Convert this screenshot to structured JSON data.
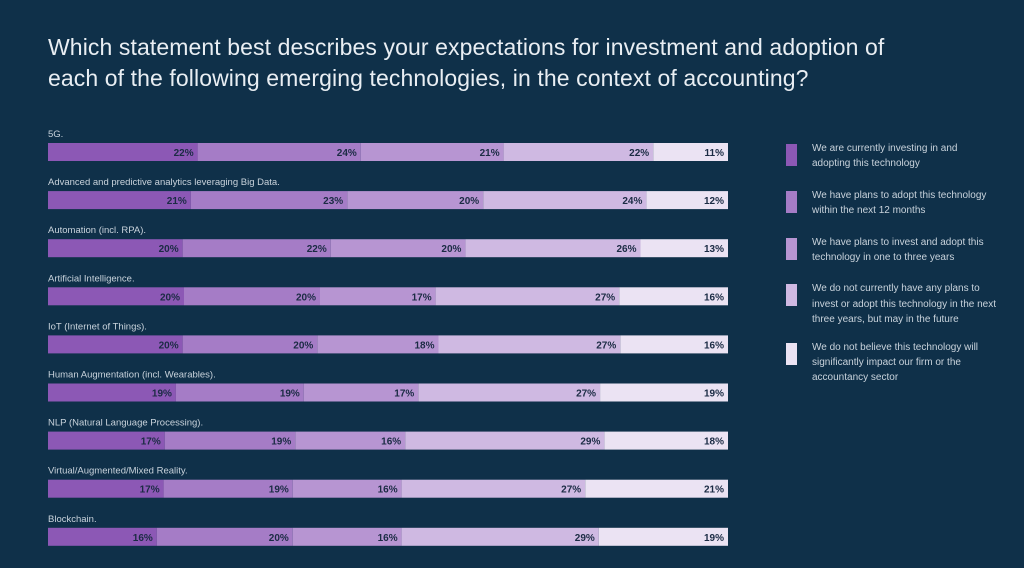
{
  "title_line1": "Which statement best describes your expectations for investment and adoption of",
  "title_line2": "each of the following emerging technologies, in the context of accounting?",
  "colors": {
    "background": "#0f3049",
    "segments": [
      "#8c58b5",
      "#a57cc6",
      "#b795d2",
      "#cfb9e2",
      "#ebe3f3"
    ]
  },
  "legend": [
    {
      "text": "We are currently investing in and adopting this technology"
    },
    {
      "text": "We have plans to adopt this technology within the next 12 months"
    },
    {
      "text": "We have plans to invest and adopt this technology in one to three years"
    },
    {
      "text": "We do not currently have any plans to invest or adopt this technology in the next three years, but may in the future"
    },
    {
      "text": "We do not believe this technology will significantly impact our firm or the accountancy sector"
    }
  ],
  "chart_data": {
    "type": "bar",
    "orientation": "horizontal",
    "stacked": true,
    "unit": "%",
    "categories": [
      "5G.",
      "Advanced and predictive analytics leveraging Big Data.",
      "Automation (incl. RPA).",
      "Artificial Intelligence.",
      "IoT (Internet of Things).",
      "Human Augmentation (incl. Wearables).",
      "NLP (Natural Language Processing).",
      "Virtual/Augmented/Mixed Reality.",
      "Blockchain."
    ],
    "series": [
      {
        "name": "We are currently investing in and adopting this technology",
        "values": [
          22,
          21,
          20,
          20,
          20,
          19,
          17,
          17,
          16
        ]
      },
      {
        "name": "We have plans to adopt this technology within the next 12 months",
        "values": [
          24,
          23,
          22,
          20,
          20,
          19,
          19,
          19,
          20
        ]
      },
      {
        "name": "We have plans to invest and adopt this technology in one to three years",
        "values": [
          21,
          20,
          20,
          17,
          18,
          17,
          16,
          16,
          16
        ]
      },
      {
        "name": "We do not currently have any plans to invest or adopt this technology in the next three years, but may in the future",
        "values": [
          22,
          24,
          26,
          27,
          27,
          27,
          29,
          27,
          29
        ]
      },
      {
        "name": "We do not believe this technology will significantly impact our firm or the accountancy sector",
        "values": [
          11,
          12,
          13,
          16,
          16,
          19,
          18,
          21,
          19
        ]
      }
    ],
    "legend_position": "right",
    "grid": false
  }
}
